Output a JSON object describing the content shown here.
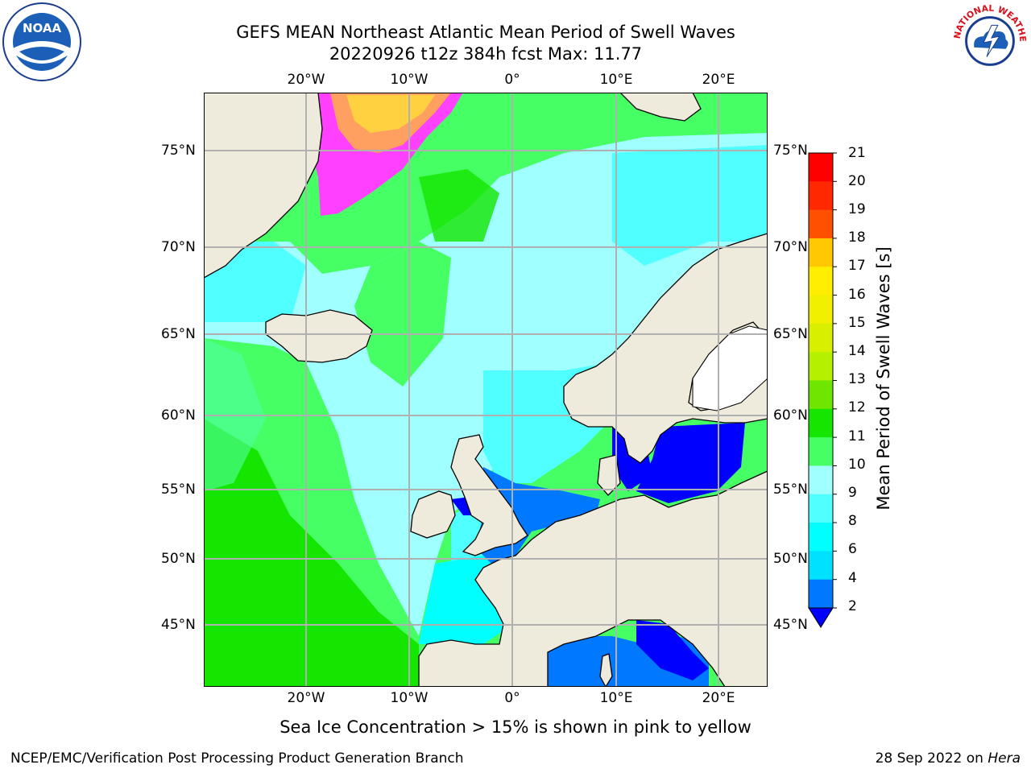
{
  "header": {
    "title_line1": "GEFS MEAN Northeast Atlantic Mean Period of Swell Waves",
    "title_line2": "20220926 t12z 384h fcst   Max: 11.77"
  },
  "map": {
    "lon_labels": [
      "20°W",
      "10°W",
      "0°",
      "10°E",
      "20°E"
    ],
    "lat_labels": [
      "75°N",
      "70°N",
      "65°N",
      "60°N",
      "55°N",
      "50°N",
      "45°N"
    ],
    "land_color": "#eeebdd",
    "grid_color": "#b0b0b0"
  },
  "colorbar": {
    "label": "Mean Period of Swell Waves [s]",
    "ticks": [
      "21",
      "20",
      "19",
      "18",
      "17",
      "16",
      "15",
      "14",
      "13",
      "12",
      "11",
      "10",
      "9",
      "8",
      "6",
      "4",
      "2"
    ],
    "colors": [
      "#ff0000",
      "#ff2800",
      "#ff5000",
      "#ff7800",
      "#ffa000",
      "#ffc800",
      "#ffee00",
      "#f0f000",
      "#d8f000",
      "#b4f000",
      "#6ee600",
      "#14e600",
      "#46ff64",
      "#a0ffff",
      "#50ffff",
      "#00ffff",
      "#00e0ff",
      "#0078ff",
      "#0000ff"
    ]
  },
  "notes": {
    "ice_note": "Sea Ice Concentration > 15% is shown in pink to yellow"
  },
  "footer": {
    "left": "NCEP/EMC/Verification Post Processing Product Generation Branch",
    "right_prefix": "28 Sep 2022 on ",
    "right_host": "Hera"
  },
  "logos": {
    "noaa_text": "NOAA",
    "nws_text": "NATIONAL WEATHER SERVICE"
  }
}
